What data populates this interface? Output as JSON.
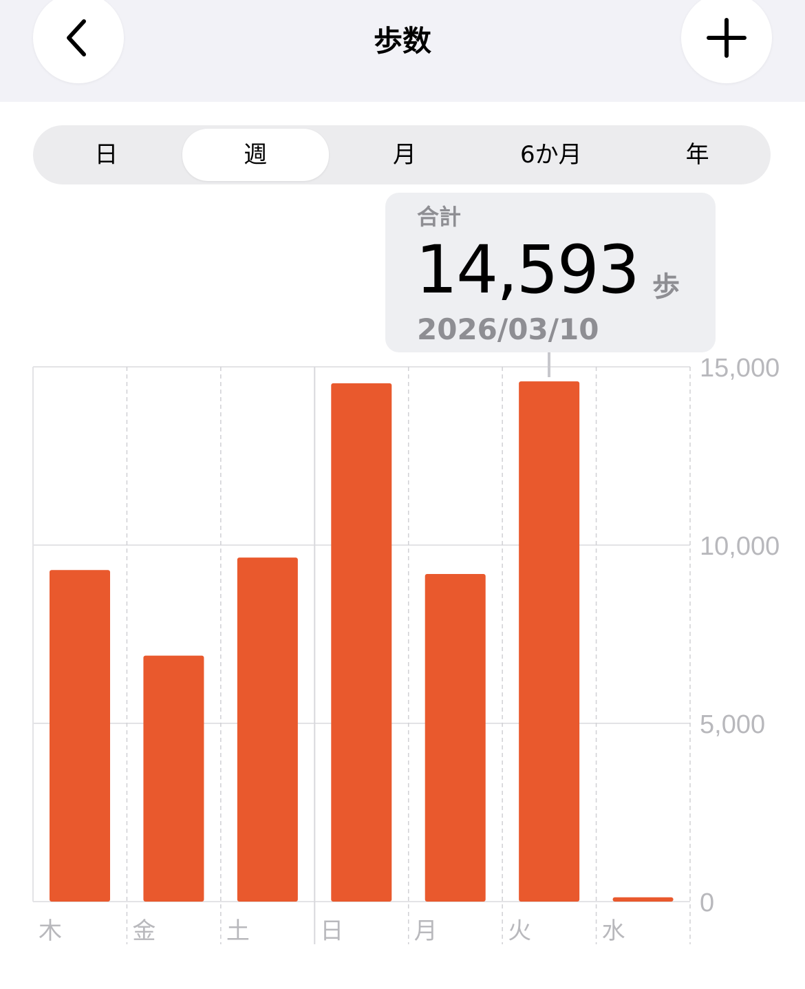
{
  "header": {
    "title": "歩数",
    "back_icon": "chevron-left-icon",
    "add_icon": "plus-icon"
  },
  "segments": [
    {
      "label": "日"
    },
    {
      "label": "週",
      "selected": true
    },
    {
      "label": "月"
    },
    {
      "label": "6か月"
    },
    {
      "label": "年"
    }
  ],
  "tooltip": {
    "label": "合計",
    "value": "14,593",
    "unit": "歩",
    "date": "2026/03/10"
  },
  "chart_data": {
    "type": "bar",
    "categories": [
      "木",
      "金",
      "土",
      "日",
      "月",
      "火",
      "水"
    ],
    "values": [
      9300,
      6900,
      9650,
      14540,
      9190,
      14593,
      120
    ],
    "ylim": [
      0,
      15000
    ],
    "yticks": [
      "15,000",
      "10,000",
      "5,000",
      "0"
    ],
    "ytick_values": [
      15000,
      10000,
      5000,
      0
    ],
    "grid": true,
    "bar_color": "#e9592d",
    "highlighted": "火"
  }
}
